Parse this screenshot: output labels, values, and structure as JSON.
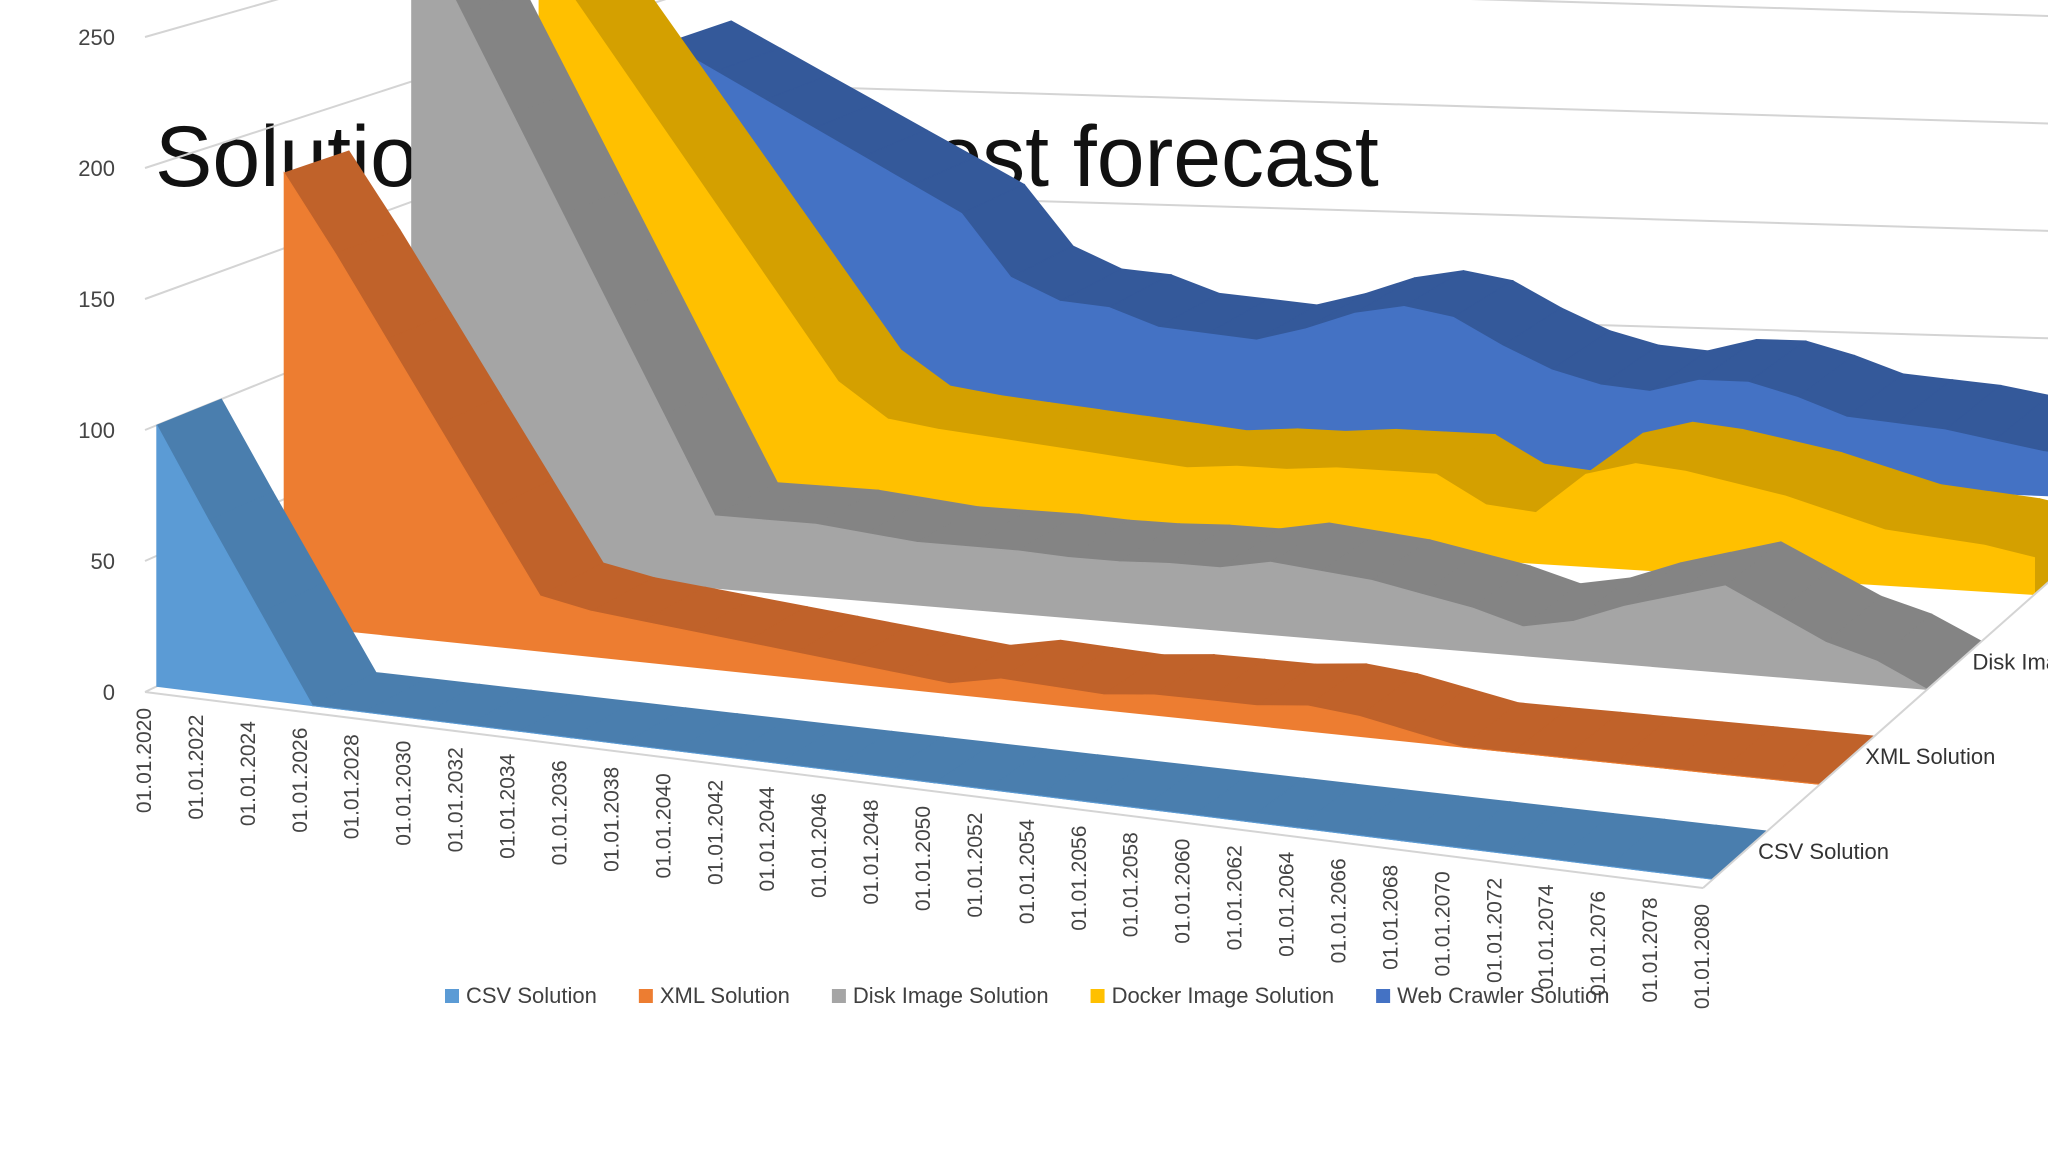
{
  "slide": {
    "title": "Solutions and their cost forecast"
  },
  "chart_data": {
    "type": "area",
    "subtype": "3d-area",
    "title": "",
    "xlabel": "",
    "ylabel": "",
    "ylim": [
      0,
      250
    ],
    "yticks": [
      "0",
      "50",
      "100",
      "150",
      "200",
      "250"
    ],
    "grid": true,
    "legend": "bottom",
    "categories": [
      "01.01.2020",
      "01.01.2022",
      "01.01.2024",
      "01.01.2026",
      "01.01.2028",
      "01.01.2030",
      "01.01.2032",
      "01.01.2034",
      "01.01.2036",
      "01.01.2038",
      "01.01.2040",
      "01.01.2042",
      "01.01.2044",
      "01.01.2046",
      "01.01.2048",
      "01.01.2050",
      "01.01.2052",
      "01.01.2054",
      "01.01.2056",
      "01.01.2058",
      "01.01.2060",
      "01.01.2062",
      "01.01.2064",
      "01.01.2066",
      "01.01.2068",
      "01.01.2070",
      "01.01.2072",
      "01.01.2074",
      "01.01.2076",
      "01.01.2078",
      "01.01.2080"
    ],
    "series": [
      {
        "name": "CSV Solution",
        "color": "#5B9BD5",
        "side": "#4A7EAE",
        "values": [
          100,
          66,
          33,
          0,
          0,
          0,
          0,
          0,
          0,
          0,
          0,
          0,
          0,
          0,
          0,
          0,
          0,
          0,
          0,
          0,
          0,
          0,
          0,
          0,
          0,
          0,
          0,
          0,
          0,
          0,
          0
        ]
      },
      {
        "name": "XML Solution",
        "color": "#ED7D31",
        "side": "#C0622A",
        "values": [
          180,
          150,
          118,
          86,
          54,
          22,
          18,
          16,
          14,
          12,
          10,
          8,
          6,
          4,
          8,
          7,
          6,
          8,
          8,
          8,
          10,
          8,
          4,
          0,
          0,
          0,
          0,
          0,
          0,
          0,
          0
        ]
      },
      {
        "name": "Disk Image Solution",
        "color": "#A5A5A5",
        "side": "#848484",
        "values": [
          270,
          230,
          190,
          150,
          110,
          70,
          30,
          30,
          30,
          28,
          26,
          26,
          26,
          25,
          25,
          26,
          26,
          30,
          28,
          26,
          22,
          18,
          12,
          16,
          24,
          30,
          36,
          26,
          16,
          10,
          0
        ]
      },
      {
        "name": "Docker Image Solution",
        "color": "#FFC000",
        "side": "#D4A000",
        "values": [
          240,
          210,
          180,
          150,
          120,
          90,
          60,
          45,
          42,
          40,
          38,
          36,
          34,
          32,
          34,
          34,
          36,
          36,
          36,
          24,
          22,
          40,
          46,
          44,
          40,
          36,
          30,
          24,
          22,
          20,
          16
        ]
      },
      {
        "name": "Web Crawler Solution",
        "color": "#4472C4",
        "side": "#34599A",
        "values": [
          180,
          168,
          156,
          144,
          132,
          120,
          108,
          80,
          70,
          68,
          60,
          58,
          56,
          62,
          70,
          74,
          70,
          58,
          48,
          42,
          40,
          46,
          46,
          40,
          32,
          30,
          28,
          24,
          20,
          18,
          16
        ]
      }
    ]
  }
}
